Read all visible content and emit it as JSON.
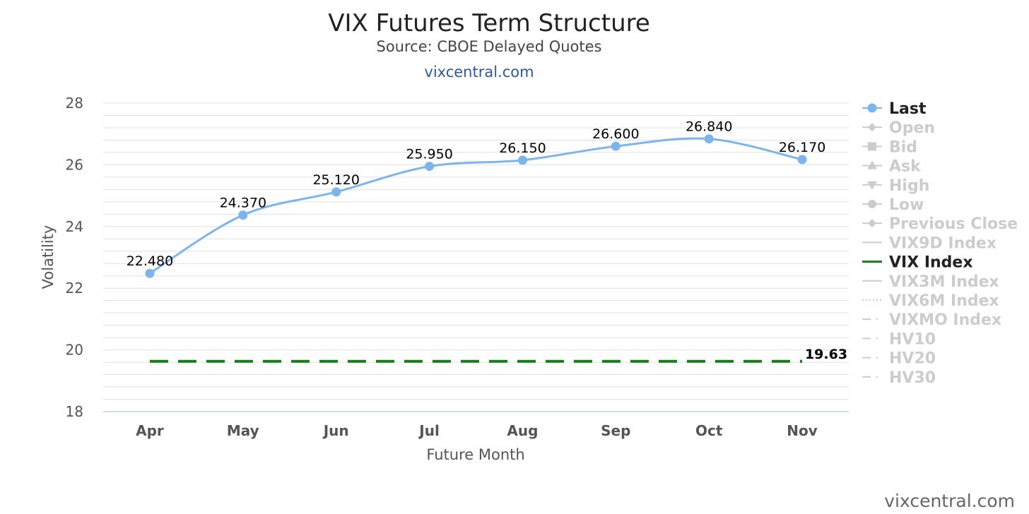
{
  "chart_data": {
    "type": "line",
    "title": "VIX Futures Term Structure",
    "subtitle": "Source: CBOE Delayed Quotes",
    "link": "vixcentral.com",
    "credit": "vixcentral.com",
    "xlabel": "Future Month",
    "ylabel": "Volatility",
    "ylim": [
      18,
      28
    ],
    "yticks": [
      18,
      20,
      22,
      24,
      26,
      28
    ],
    "categories": [
      "Apr",
      "May",
      "Jun",
      "Jul",
      "Aug",
      "Sep",
      "Oct",
      "Nov"
    ],
    "grid": true,
    "legend_position": "right",
    "series": [
      {
        "name": "Last",
        "values": [
          22.48,
          24.37,
          25.12,
          25.95,
          26.15,
          26.6,
          26.84,
          26.17
        ],
        "data_labels": [
          "22.480",
          "24.370",
          "25.120",
          "25.950",
          "26.150",
          "26.600",
          "26.840",
          "26.170"
        ],
        "color": "#7cb5ec",
        "marker": "circle"
      },
      {
        "name": "VIX Index",
        "value": 19.63,
        "label": "19.63",
        "color": "#1a7a1a",
        "style": "dashed"
      }
    ],
    "legend": [
      {
        "name": "Last",
        "active": true,
        "symbol": "circle-line"
      },
      {
        "name": "Open",
        "active": false,
        "symbol": "diamond-line"
      },
      {
        "name": "Bid",
        "active": false,
        "symbol": "square-line"
      },
      {
        "name": "Ask",
        "active": false,
        "symbol": "triangle-line"
      },
      {
        "name": "High",
        "active": false,
        "symbol": "triangle-down-line"
      },
      {
        "name": "Low",
        "active": false,
        "symbol": "circle-line"
      },
      {
        "name": "Previous Close",
        "active": false,
        "symbol": "diamond-line"
      },
      {
        "name": "VIX9D Index",
        "active": false,
        "symbol": "line"
      },
      {
        "name": "VIX Index",
        "active": true,
        "symbol": "line"
      },
      {
        "name": "VIX3M Index",
        "active": false,
        "symbol": "line"
      },
      {
        "name": "VIX6M Index",
        "active": false,
        "symbol": "dotted"
      },
      {
        "name": "VIXMO Index",
        "active": false,
        "symbol": "dash-dot"
      },
      {
        "name": "HV10",
        "active": false,
        "symbol": "dash-dot"
      },
      {
        "name": "HV20",
        "active": false,
        "symbol": "dash-dot"
      },
      {
        "name": "HV30",
        "active": false,
        "symbol": "dash-dot"
      }
    ],
    "colors": {
      "last": "#7cb5ec",
      "vix": "#1a7a1a",
      "legend_active": "#222222",
      "legend_inactive": "#cccccc",
      "grid": "#e0e0e0",
      "axis": "#c0d0e0"
    }
  }
}
